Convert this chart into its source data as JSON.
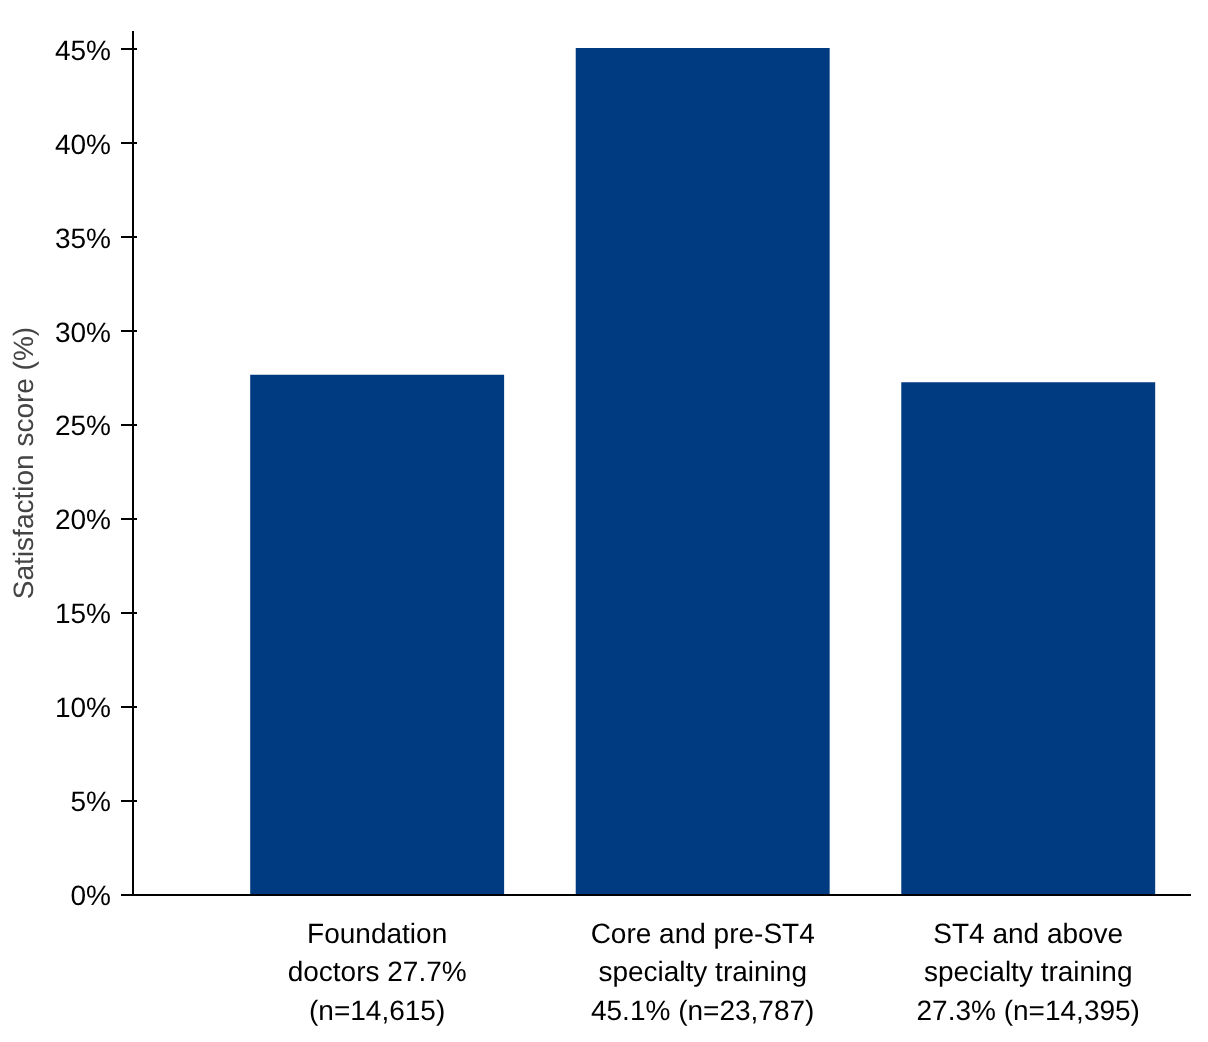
{
  "chart_data": {
    "type": "bar",
    "ylabel": "Satisfaction score (%)",
    "categories": [
      "Foundation\ndoctors 27.7%\n(n=14,615)",
      "Core and pre-ST4\nspecialty training\n45.1% (n=23,787)",
      "ST4 and above\nspecialty training\n27.3% (n=14,395)"
    ],
    "values": [
      27.7,
      45.1,
      27.3
    ],
    "color": "#003a80",
    "ylim": [
      0,
      46
    ],
    "yticks": [
      {
        "value": 0,
        "label": "0%"
      },
      {
        "value": 5,
        "label": "5%"
      },
      {
        "value": 10,
        "label": "10%"
      },
      {
        "value": 15,
        "label": "15%"
      },
      {
        "value": 20,
        "label": "20%"
      },
      {
        "value": 25,
        "label": "25%"
      },
      {
        "value": 30,
        "label": "30%"
      },
      {
        "value": 35,
        "label": "35%"
      },
      {
        "value": 40,
        "label": "40%"
      },
      {
        "value": 45,
        "label": "45%"
      }
    ],
    "grid": false
  }
}
